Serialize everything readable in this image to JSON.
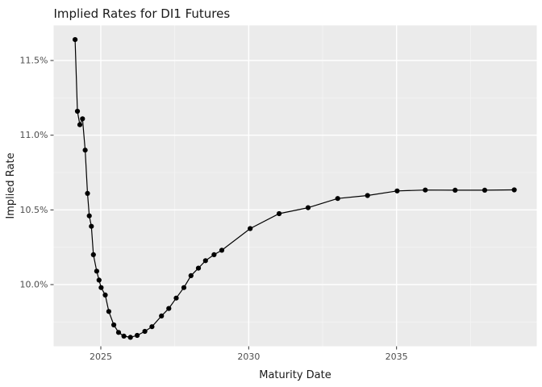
{
  "page": {
    "background": "#ffffff"
  },
  "chart_data": {
    "type": "line",
    "title": "Implied Rates for DI1 Futures",
    "xlabel": "Maturity Date",
    "ylabel": "Implied Rate",
    "legend": "none",
    "grid": "on",
    "style": "ggplot",
    "panel_bg": "#ebebeb",
    "grid_major_color": "#ffffff",
    "grid_minor_color": "#f5f5f5",
    "tick_mark_color": "#333333",
    "tick_label_color": "#4d4d4d",
    "line_color": "#000000",
    "marker_color": "#000000",
    "xlim": [
      2023.405,
      2039.74
    ],
    "ylim": [
      9.587,
      11.735
    ],
    "x_ticks": [
      {
        "value": 2025,
        "label": "2025"
      },
      {
        "value": 2030,
        "label": "2030"
      },
      {
        "value": 2035,
        "label": "2035"
      }
    ],
    "x_minor_ticks": [
      2027.5,
      2032.5,
      2037.5
    ],
    "y_ticks": [
      {
        "value": 11.5,
        "label": "11.5%"
      },
      {
        "value": 11.0,
        "label": "11.0%"
      },
      {
        "value": 10.5,
        "label": "10.5%"
      },
      {
        "value": 10.0,
        "label": "10.0%"
      }
    ],
    "y_minor_ticks": [
      11.25,
      10.75,
      10.25,
      9.75
    ],
    "series": [
      {
        "name": "implied_rate",
        "marker": "circle",
        "x": [
          2024.13,
          2024.21,
          2024.29,
          2024.38,
          2024.47,
          2024.55,
          2024.61,
          2024.68,
          2024.75,
          2024.86,
          2024.94,
          2025.01,
          2025.15,
          2025.27,
          2025.44,
          2025.6,
          2025.78,
          2026.0,
          2026.23,
          2026.49,
          2026.73,
          2027.05,
          2027.3,
          2027.55,
          2027.81,
          2028.05,
          2028.3,
          2028.54,
          2028.83,
          2029.09,
          2030.05,
          2031.03,
          2032.01,
          2033.01,
          2034.02,
          2035.02,
          2035.97,
          2036.98,
          2037.98,
          2038.98
        ],
        "y": [
          11.64,
          11.16,
          11.07,
          11.11,
          10.9,
          10.61,
          10.46,
          10.39,
          10.2,
          10.09,
          10.03,
          9.98,
          9.93,
          9.82,
          9.73,
          9.68,
          9.655,
          9.647,
          9.66,
          9.687,
          9.718,
          9.79,
          9.84,
          9.91,
          9.98,
          10.06,
          10.11,
          10.16,
          10.2,
          10.23,
          10.375,
          10.475,
          10.515,
          10.576,
          10.596,
          10.627,
          10.633,
          10.632,
          10.632,
          10.634
        ]
      }
    ]
  }
}
